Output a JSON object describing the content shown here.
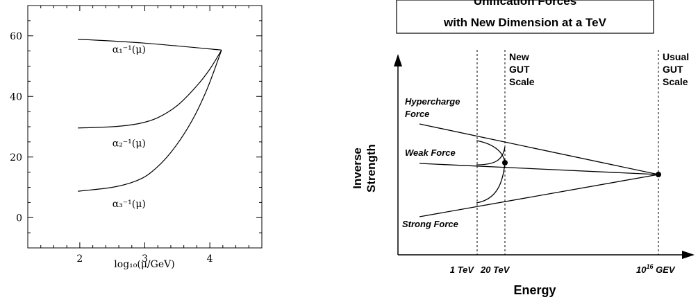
{
  "chart_data": [
    {
      "type": "line",
      "title": "",
      "xlabel": "log₁₀(μ/GeV)",
      "ylabel": "",
      "xlim": [
        1.2,
        4.8
      ],
      "ylim": [
        -10,
        70
      ],
      "x_ticks": [
        "2",
        "3",
        "4"
      ],
      "y_ticks": [
        "0",
        "20",
        "40",
        "60"
      ],
      "grid": false,
      "series": [
        {
          "name": "α₁⁻¹(μ)",
          "points": [
            [
              1.97,
              58.9
            ],
            [
              3.0,
              57.6
            ],
            [
              4.18,
              55.3
            ]
          ]
        },
        {
          "name": "α₂⁻¹(μ)",
          "points": [
            [
              1.97,
              29.6
            ],
            [
              2.5,
              30.0
            ],
            [
              2.9,
              31.0
            ],
            [
              3.2,
              33.0
            ],
            [
              3.5,
              37.0
            ],
            [
              3.8,
              43.5
            ],
            [
              4.0,
              49.0
            ],
            [
              4.18,
              55.3
            ]
          ]
        },
        {
          "name": "α₃⁻¹(μ)",
          "points": [
            [
              1.97,
              8.7
            ],
            [
              2.5,
              10.0
            ],
            [
              2.85,
              12.0
            ],
            [
              3.1,
              15.0
            ],
            [
              3.4,
              21.5
            ],
            [
              3.7,
              31.0
            ],
            [
              3.95,
              42.0
            ],
            [
              4.18,
              55.3
            ]
          ]
        }
      ],
      "annotations": [
        {
          "text": "α₁⁻¹(μ)",
          "at": [
            2.5,
            54.5
          ]
        },
        {
          "text": "α₂⁻¹(μ)",
          "at": [
            2.5,
            23.5
          ]
        },
        {
          "text": "α₃⁻¹(μ)",
          "at": [
            2.5,
            3.5
          ]
        }
      ]
    },
    {
      "type": "line",
      "title_lines": [
        "Unification Forces",
        "with New Dimension at a TeV"
      ],
      "xlabel": "Energy",
      "ylabel_lines": [
        "Inverse",
        "Strength"
      ],
      "x_ticks": [
        {
          "label": "1 TeV",
          "sup": ""
        },
        {
          "label": "20 TeV",
          "sup": ""
        },
        {
          "label": "10",
          "sup": "16",
          "suffix": " GEV"
        }
      ],
      "scale_labels": [
        {
          "lines": [
            "New",
            "GUT",
            "Scale"
          ]
        },
        {
          "lines": [
            "Usual",
            "GUT",
            "Scale"
          ]
        }
      ],
      "force_labels": [
        {
          "lines": [
            "Hypercharge",
            "Force"
          ]
        },
        {
          "lines": [
            "Weak Force"
          ]
        },
        {
          "lines": [
            "Strong Force"
          ]
        }
      ]
    }
  ]
}
